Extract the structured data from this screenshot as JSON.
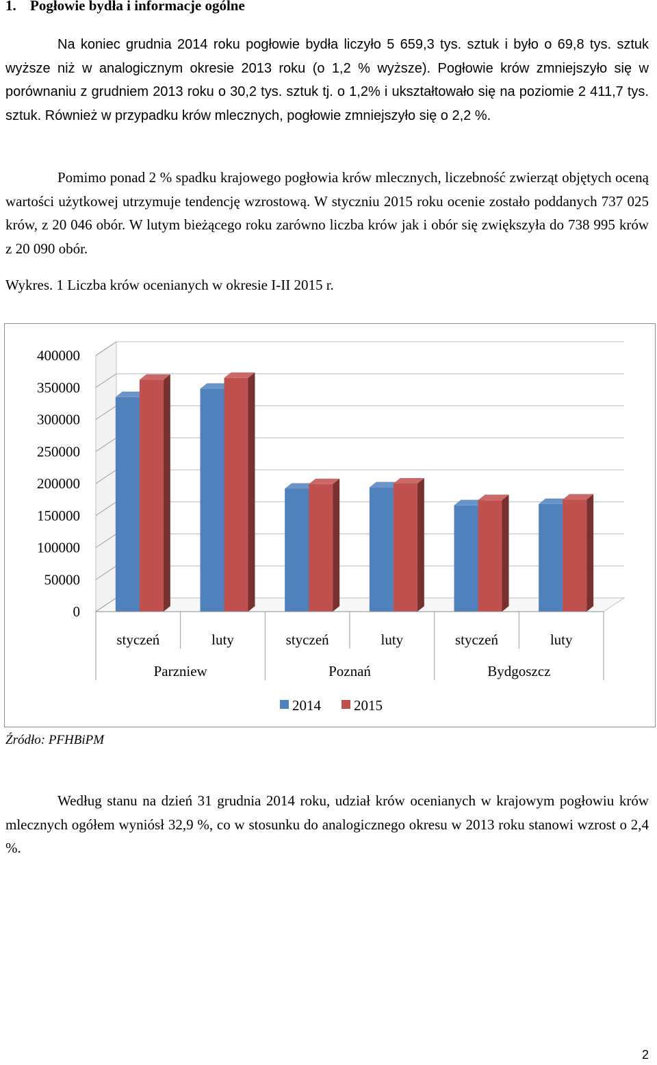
{
  "heading": {
    "number": "1.",
    "title": "Pogłowie bydła i informacje ogólne"
  },
  "paragraphs": {
    "p1": "Na koniec grudnia 2014 roku pogłowie bydła liczyło 5 659,3 tys. sztuk i było o 69,8 tys. sztuk wyższe niż w analogicznym okresie 2013 roku (o 1,2 % wyższe). Pogłowie krów zmniejszyło się w porównaniu z grudniem 2013 roku o 30,2 tys. sztuk tj. o 1,2% i ukształtowało się na poziomie 2 411,7 tys. sztuk. Również w przypadku krów mlecznych, pogłowie zmniejszyło się o 2,2 %.",
    "p2": "Pomimo ponad 2 % spadku krajowego pogłowia krów mlecznych, liczebność zwierząt objętych oceną wartości użytkowej utrzymuje tendencję wzrostową. W styczniu 2015 roku ocenie zostało poddanych 737 025 krów, z 20 046 obór. W lutym bieżącego roku zarówno liczba krów jak i obór się zwiększyła do 738 995 krów z 20 090 obór.",
    "p3": "Według stanu na dzień 31 grudnia 2014 roku, udział krów ocenianych w krajowym pogłowiu krów mlecznych ogółem wyniósł 32,9 %, co w stosunku do analogicznego okresu w 2013 roku stanowi wzrost o 2,4 %."
  },
  "caption": "Wykres. 1 Liczba krów ocenianych w okresie I-II 2015 r.",
  "source": "Źródło: PFHBiPM",
  "page_number": "2",
  "chart_data": {
    "type": "bar",
    "groups": [
      "Parzniew",
      "Poznań",
      "Bydgoszcz"
    ],
    "categories": [
      "styczeń",
      "luty",
      "styczeń",
      "luty",
      "styczeń",
      "luty"
    ],
    "series": [
      {
        "name": "2014",
        "color": "#4f81bd",
        "values": [
          335000,
          348000,
          192000,
          194000,
          166000,
          168000
        ]
      },
      {
        "name": "2015",
        "color": "#c0504d",
        "values": [
          362000,
          365000,
          199000,
          200000,
          174000,
          175000
        ]
      }
    ],
    "yticks": [
      "0",
      "50000",
      "100000",
      "150000",
      "200000",
      "250000",
      "300000",
      "350000",
      "400000"
    ],
    "ylim": [
      0,
      400000
    ],
    "legend_position": "bottom",
    "style": "3d-clustered"
  }
}
